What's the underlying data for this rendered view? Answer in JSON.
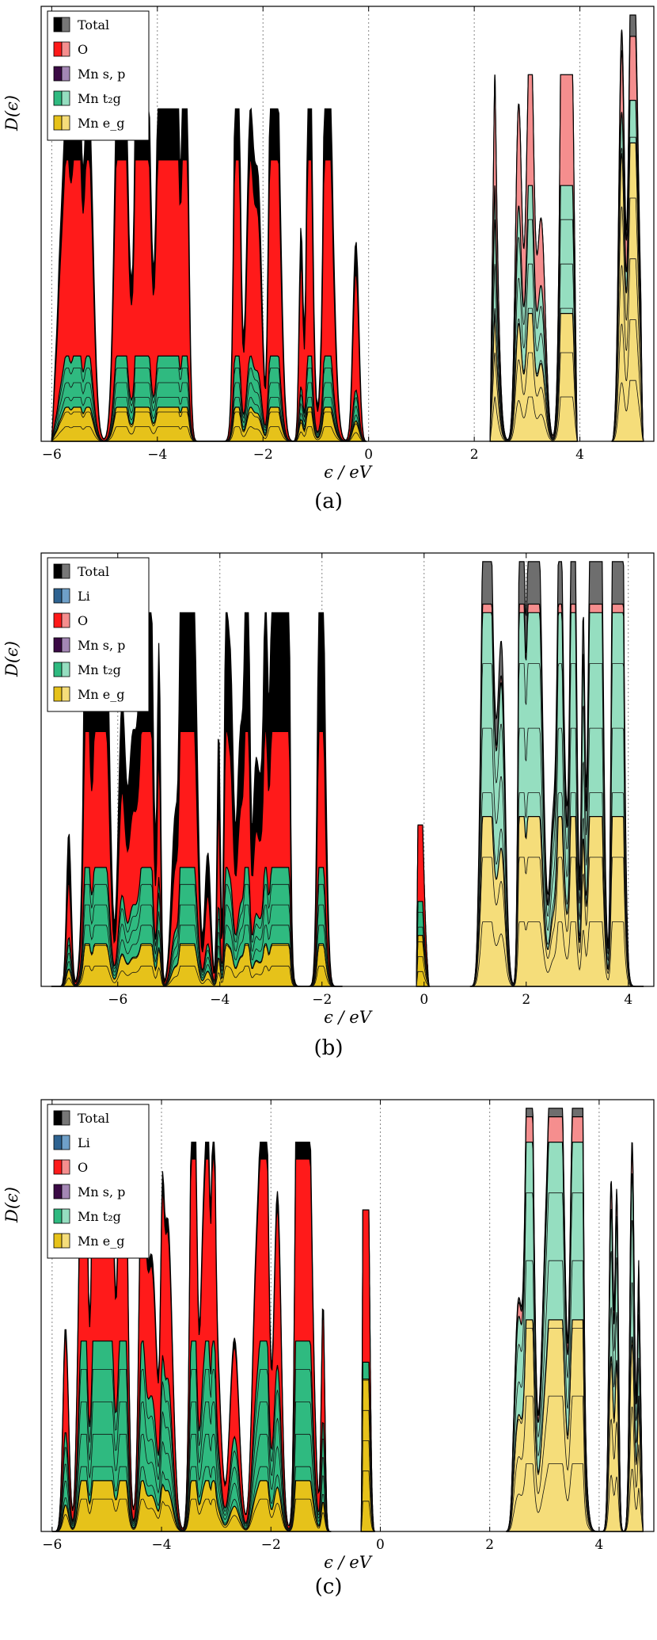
{
  "chart_data": [
    {
      "type": "area",
      "panel_label": "(a)",
      "xlabel": "ϵ / eV",
      "ylabel": "D(ϵ)",
      "xlim": [
        -6.2,
        5.4
      ],
      "xticks": [
        "−6",
        "−4",
        "−2",
        "0",
        "2",
        "4"
      ],
      "xtick_values": [
        -6,
        -4,
        -2,
        0,
        2,
        4
      ],
      "grid": "vertical dotted lines at ticks",
      "legend": "top-left",
      "series": [
        {
          "name": "Total",
          "color": "#000000"
        },
        {
          "name": "O",
          "color": "#ff1a1a"
        },
        {
          "name": "Mn s, p",
          "color": "#3b0a45"
        },
        {
          "name": "Mn t₂g",
          "color": "#2fba80"
        },
        {
          "name": "Mn e_g",
          "color": "#e6c21a"
        }
      ],
      "bands": [
        {
          "x_range": [
            -6.0,
            -0.05
          ],
          "total_peak": 0.78,
          "o_peak": 0.66,
          "t2g_peak": 0.2,
          "eg_peak": 0.08
        },
        {
          "x_range": [
            2.3,
            3.95
          ],
          "total_peak": 0.86,
          "o_peak": 0.86,
          "t2g_peak": 0.6,
          "eg_peak": 0.3
        },
        {
          "x_range": [
            4.6,
            5.2
          ],
          "total_peak": 1.0,
          "o_peak": 0.95,
          "t2g_peak": 0.8,
          "eg_peak": 0.7
        }
      ]
    },
    {
      "type": "area",
      "panel_label": "(b)",
      "xlabel": "ϵ / eV",
      "ylabel": "D(ϵ)",
      "xlim": [
        -7.5,
        4.5
      ],
      "xticks": [
        "−6",
        "−4",
        "−2",
        "0",
        "2",
        "4"
      ],
      "xtick_values": [
        -6,
        -4,
        -2,
        0,
        2,
        4
      ],
      "grid": "vertical dotted lines at ticks",
      "legend": "top-left",
      "series": [
        {
          "name": "Total",
          "color": "#000000"
        },
        {
          "name": "Li",
          "color": "#2e6391"
        },
        {
          "name": "O",
          "color": "#ff1a1a"
        },
        {
          "name": "Mn s, p",
          "color": "#3b0a45"
        },
        {
          "name": "Mn t₂g",
          "color": "#2fba80"
        },
        {
          "name": "Mn e_g",
          "color": "#e6c21a"
        }
      ],
      "bands": [
        {
          "x_range": [
            -7.3,
            -1.6
          ],
          "total_peak": 0.88,
          "o_peak": 0.6,
          "t2g_peak": 0.28,
          "eg_peak": 0.1
        },
        {
          "x_range": [
            -0.15,
            0.1
          ],
          "total_peak": 0.38,
          "o_peak": 0.38,
          "t2g_peak": 0.2,
          "eg_peak": 0.12
        },
        {
          "x_range": [
            0.9,
            4.3
          ],
          "total_peak": 1.0,
          "o_peak": 0.9,
          "t2g_peak": 0.88,
          "eg_peak": 0.4
        }
      ]
    },
    {
      "type": "area",
      "panel_label": "(c)",
      "xlabel": "ϵ / eV",
      "ylabel": "D(ϵ)",
      "xlim": [
        -6.2,
        5.0
      ],
      "xticks": [
        "−6",
        "−4",
        "−2",
        "0",
        "2",
        "4"
      ],
      "xtick_values": [
        -6,
        -4,
        -2,
        0,
        2,
        4
      ],
      "grid": "vertical dotted lines at ticks",
      "legend": "top-left",
      "series": [
        {
          "name": "Total",
          "color": "#000000"
        },
        {
          "name": "Li",
          "color": "#2e6391"
        },
        {
          "name": "O",
          "color": "#ff1a1a"
        },
        {
          "name": "Mn s, p",
          "color": "#3b0a45"
        },
        {
          "name": "Mn t₂g",
          "color": "#2fba80"
        },
        {
          "name": "Mn e_g",
          "color": "#e6c21a"
        }
      ],
      "bands": [
        {
          "x_range": [
            -6.0,
            -0.9
          ],
          "total_peak": 0.92,
          "o_peak": 0.88,
          "t2g_peak": 0.45,
          "eg_peak": 0.12
        },
        {
          "x_range": [
            -0.35,
            -0.1
          ],
          "total_peak": 0.76,
          "o_peak": 0.76,
          "t2g_peak": 0.4,
          "eg_peak": 0.36
        },
        {
          "x_range": [
            2.3,
            4.8
          ],
          "total_peak": 1.0,
          "o_peak": 0.98,
          "t2g_peak": 0.92,
          "eg_peak": 0.5
        }
      ]
    }
  ]
}
